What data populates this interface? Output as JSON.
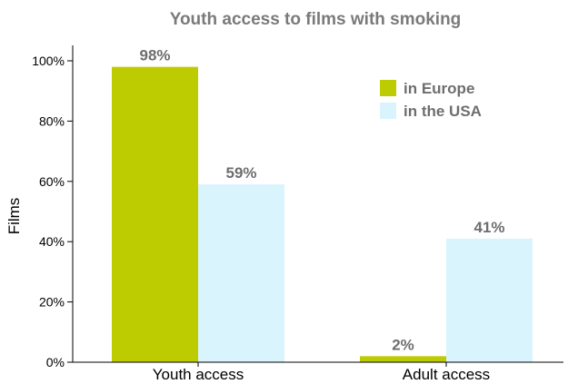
{
  "chart_data": {
    "type": "bar",
    "title": "Youth access to films with smoking",
    "ylabel": "Films",
    "xlabel": "",
    "categories": [
      "Youth access",
      "Adult access"
    ],
    "series": [
      {
        "name": "in Europe",
        "values": [
          98,
          2
        ],
        "color": "#bdcc00",
        "labels": [
          "98%",
          "2%"
        ]
      },
      {
        "name": "in the USA",
        "values": [
          59,
          41
        ],
        "color": "#d9f4fd",
        "labels": [
          "59%",
          "41%"
        ]
      }
    ],
    "ylim": [
      0,
      100
    ],
    "yticks": [
      0,
      20,
      40,
      60,
      80,
      100
    ],
    "ytick_labels": [
      "0%",
      "20%",
      "40%",
      "60%",
      "80%",
      "100%"
    ],
    "grid": false,
    "legend_position": "top-right"
  }
}
